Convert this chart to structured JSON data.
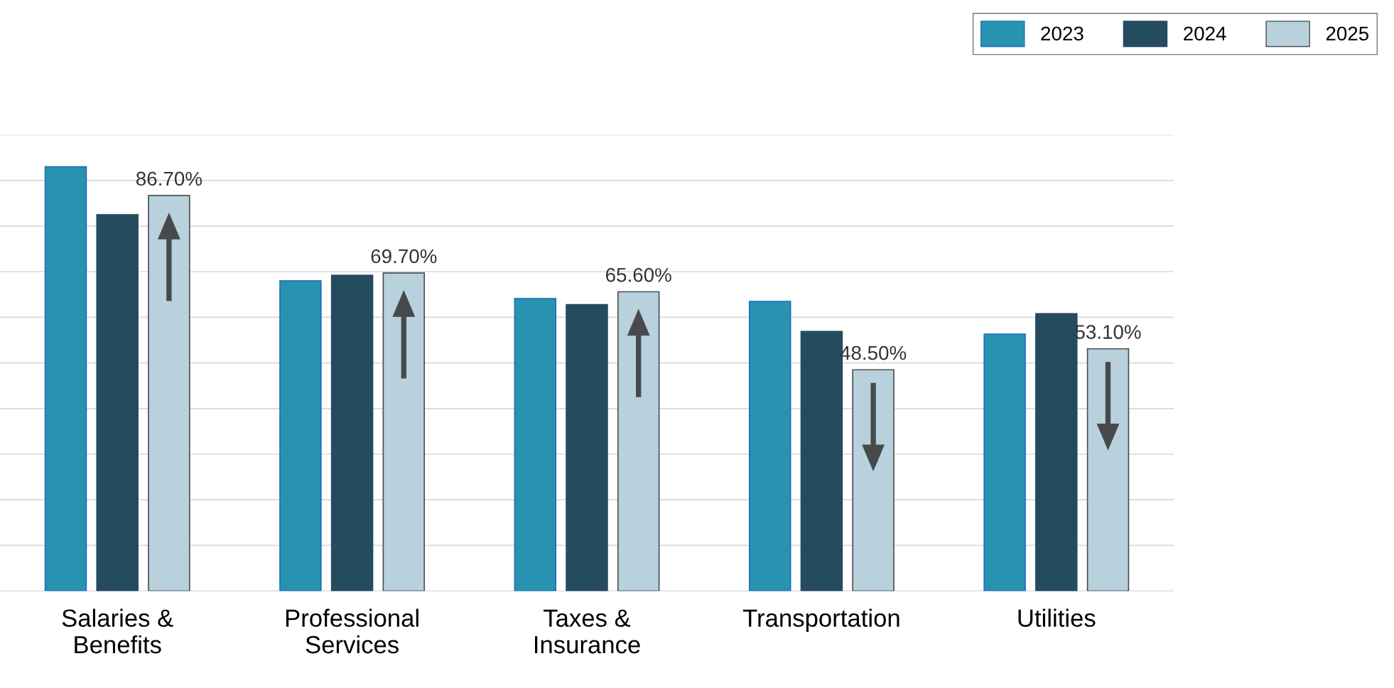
{
  "chart_data": {
    "type": "bar",
    "categories": [
      "Salaries &\nBenefits",
      "Professional\nServices",
      "Taxes &\nInsurance",
      "Transportation",
      "Utilities"
    ],
    "series": [
      {
        "name": "2023",
        "color": "#2893b1",
        "values": [
          93.0,
          68.0,
          64.1,
          63.5,
          56.3
        ]
      },
      {
        "name": "2024",
        "color": "#254b5e",
        "values": [
          82.5,
          69.2,
          62.8,
          56.9,
          60.8
        ]
      },
      {
        "name": "2025",
        "color": "#b8d1dc",
        "values": [
          86.7,
          69.7,
          65.6,
          48.5,
          53.1
        ],
        "value_labels": [
          "86.70%",
          "69.70%",
          "65.60%",
          "48.50%",
          "53.10%"
        ]
      }
    ],
    "ylim": [
      0,
      100
    ],
    "yticks": [
      {
        "value": 0,
        "label": null
      },
      {
        "value": 10,
        "label": null
      },
      {
        "value": 20,
        "label": null
      },
      {
        "value": 30,
        "label": null
      },
      {
        "value": 40,
        "label": null
      },
      {
        "value": 50,
        "label": null
      },
      {
        "value": 60,
        "label": null
      },
      {
        "value": 70,
        "label": null
      },
      {
        "value": 80,
        "label": null
      },
      {
        "value": 90,
        "label": null
      },
      {
        "value": 100,
        "label": null
      }
    ],
    "grid": "y",
    "legend": "top right",
    "tick_labels": "x"
  }
}
